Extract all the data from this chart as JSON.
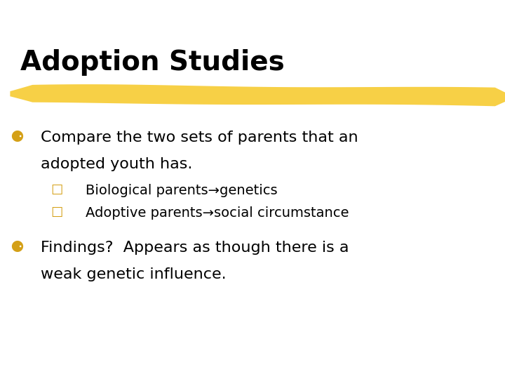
{
  "background_color": "#ffffff",
  "title": "Adoption Studies",
  "title_color": "#000000",
  "title_fontsize": 28,
  "title_fontweight": "bold",
  "title_font": "DejaVu Sans",
  "highlight_color": "#F5C518",
  "bullet_color": "#D4A017",
  "bullet_symbol_z": "⚈",
  "bullet_symbol_y": "☐",
  "bullet1_text1": "Compare the two sets of parents that an",
  "bullet1_text2": "adopted youth has.",
  "sub1_text": "Biological parents→genetics",
  "sub2_text": "Adoptive parents→social circumstance",
  "bullet2_text1": "Findings?  Appears as though there is a",
  "bullet2_text2": "weak genetic influence.",
  "body_fontsize": 16,
  "sub_fontsize": 14,
  "body_color": "#000000",
  "body_font": "DejaVu Sans"
}
